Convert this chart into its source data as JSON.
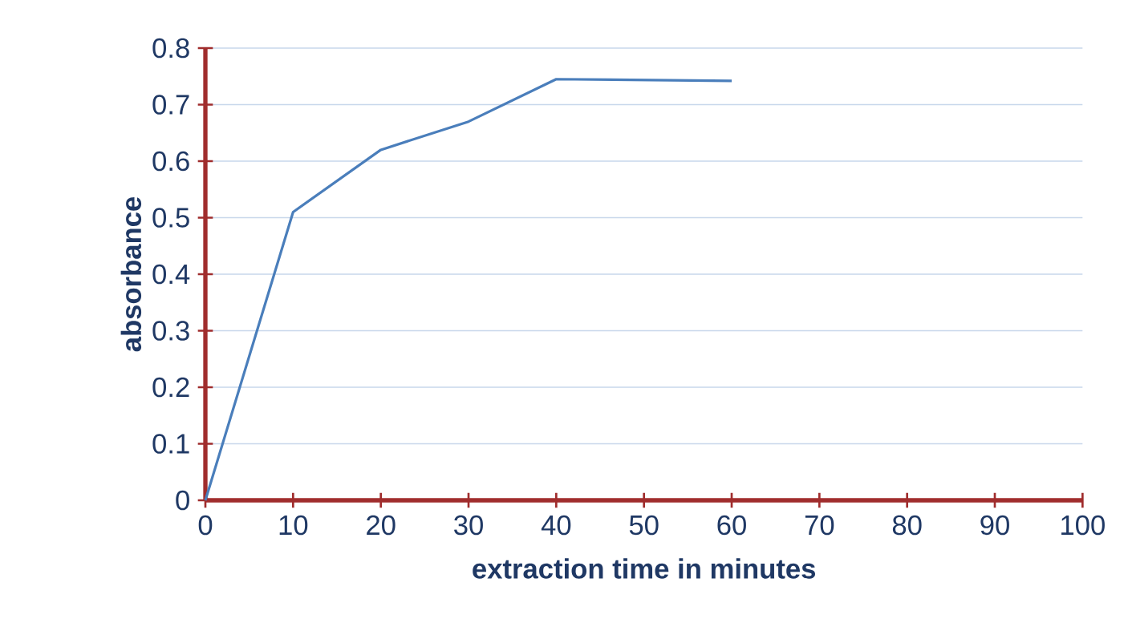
{
  "chart_data": {
    "type": "line",
    "xlabel": "extraction time in minutes",
    "ylabel": "absorbance",
    "x": [
      0,
      10,
      20,
      30,
      40,
      60
    ],
    "series": [
      {
        "color": "#4a7ebb",
        "values": [
          0,
          0.51,
          0.62,
          0.67,
          0.745,
          0.742
        ]
      }
    ],
    "xlim": [
      0,
      100
    ],
    "xticks": [
      0,
      10,
      20,
      30,
      40,
      50,
      60,
      70,
      80,
      90,
      100
    ],
    "ylim": [
      0,
      0.8
    ],
    "yticks": [
      0,
      0.1,
      0.2,
      0.3,
      0.4,
      0.5,
      0.6,
      0.7,
      0.8
    ],
    "grid": "y",
    "marker": "none",
    "line_style": "solid"
  }
}
